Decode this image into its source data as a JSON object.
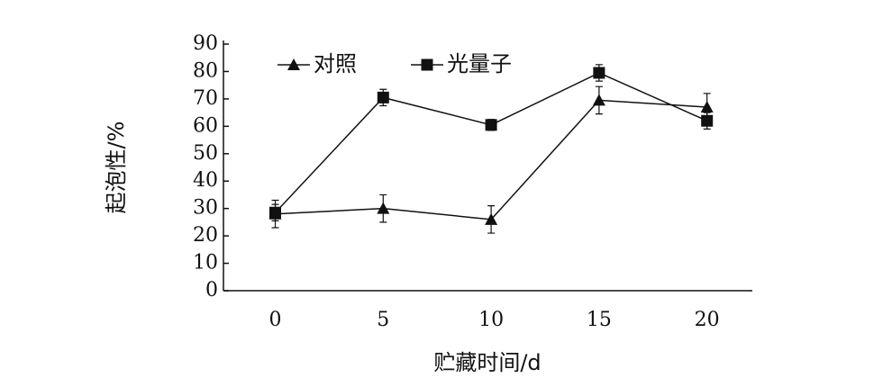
{
  "chart_data": {
    "type": "line",
    "x_label": "贮藏时间/d",
    "y_label": "起泡性/%",
    "x": [
      0,
      5,
      10,
      15,
      20
    ],
    "series": [
      {
        "name": "对照",
        "color": "#111111",
        "marker": "triangle",
        "values": [
          28,
          30,
          26,
          69.5,
          67
        ],
        "errors": [
          5,
          5,
          5,
          5,
          5
        ]
      },
      {
        "name": "光量子",
        "color": "#111111",
        "marker": "square",
        "values": [
          28.5,
          70.5,
          60.5,
          79.5,
          62
        ],
        "errors": [
          3,
          3,
          2,
          3,
          3
        ]
      }
    ],
    "xlim": [
      -2.4,
      22.1
    ],
    "xticks": [
      0,
      5,
      10,
      15,
      20
    ],
    "ylim": [
      0,
      90
    ],
    "yticks": [
      0,
      10,
      20,
      30,
      40,
      50,
      60,
      70,
      80,
      90
    ],
    "legend": "upper left"
  }
}
